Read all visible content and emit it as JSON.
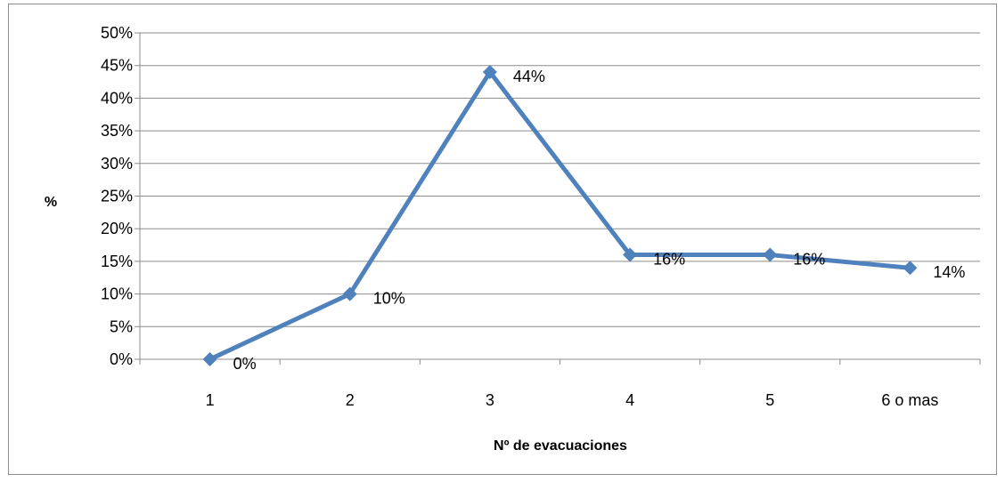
{
  "chart_data": {
    "type": "line",
    "categories": [
      "1",
      "2",
      "3",
      "4",
      "5",
      "6 o mas"
    ],
    "values": [
      0,
      10,
      44,
      16,
      16,
      14
    ],
    "data_labels": [
      "0%",
      "10%",
      "44%",
      "16%",
      "16%",
      "14%"
    ],
    "y_ticks": [
      "0%",
      "5%",
      "10%",
      "15%",
      "20%",
      "25%",
      "30%",
      "35%",
      "40%",
      "45%",
      "50%"
    ],
    "xlabel": "Nº de evacuaciones",
    "ylabel": "%",
    "ylim": [
      0,
      50
    ],
    "grid": true,
    "colors": {
      "series": "#4f81bd",
      "grid": "#8c8c8c",
      "axis": "#8c8c8c"
    }
  }
}
